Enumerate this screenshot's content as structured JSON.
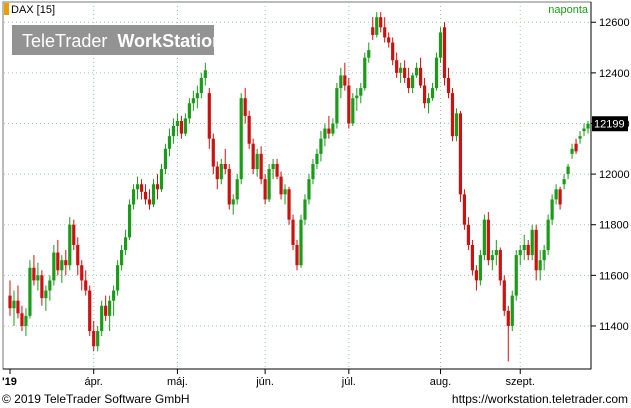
{
  "header": {
    "symbol": "DAX [15]",
    "period": "naponta",
    "watermark_light": "TeleTrader",
    "watermark_bold": "WorkStation"
  },
  "last_price_badge": "12199",
  "footer": {
    "copyright": "© 2019 TeleTrader Software GmbH",
    "url": "https://workstation.teletrader.com"
  },
  "colors": {
    "up": "#1a9c1a",
    "down": "#cc1111",
    "grid": "#9fc9a6",
    "background": "#ffffff"
  },
  "chart_data": {
    "type": "candlestick",
    "title": "DAX [15]",
    "period": "naponta",
    "ylim": [
      11230,
      12680
    ],
    "yticks": [
      11400,
      11600,
      11800,
      12000,
      12200,
      12400,
      12600
    ],
    "x_labels": [
      "'19",
      "ápr.",
      "máj.",
      "jún.",
      "júl.",
      "aug.",
      "szept."
    ],
    "grid": true,
    "candles": [
      [
        11520,
        11580,
        11440,
        11470
      ],
      [
        11470,
        11540,
        11400,
        11500
      ],
      [
        11500,
        11560,
        11430,
        11450
      ],
      [
        11450,
        11480,
        11380,
        11400
      ],
      [
        11400,
        11470,
        11360,
        11440
      ],
      [
        11440,
        11660,
        11430,
        11630
      ],
      [
        11630,
        11680,
        11560,
        11580
      ],
      [
        11580,
        11650,
        11540,
        11600
      ],
      [
        11600,
        11620,
        11480,
        11510
      ],
      [
        11510,
        11560,
        11460,
        11540
      ],
      [
        11540,
        11600,
        11500,
        11580
      ],
      [
        11580,
        11720,
        11560,
        11690
      ],
      [
        11690,
        11740,
        11600,
        11620
      ],
      [
        11620,
        11680,
        11570,
        11660
      ],
      [
        11660,
        11700,
        11600,
        11640
      ],
      [
        11640,
        11830,
        11620,
        11800
      ],
      [
        11800,
        11820,
        11700,
        11720
      ],
      [
        11720,
        11750,
        11600,
        11640
      ],
      [
        11640,
        11660,
        11540,
        11580
      ],
      [
        11580,
        11620,
        11520,
        11540
      ],
      [
        11540,
        11560,
        11360,
        11380
      ],
      [
        11380,
        11420,
        11300,
        11320
      ],
      [
        11320,
        11400,
        11300,
        11380
      ],
      [
        11380,
        11500,
        11360,
        11480
      ],
      [
        11480,
        11520,
        11420,
        11440
      ],
      [
        11440,
        11520,
        11380,
        11500
      ],
      [
        11500,
        11560,
        11440,
        11540
      ],
      [
        11540,
        11660,
        11520,
        11640
      ],
      [
        11640,
        11720,
        11620,
        11700
      ],
      [
        11700,
        11780,
        11680,
        11750
      ],
      [
        11750,
        11900,
        11740,
        11880
      ],
      [
        11880,
        11960,
        11860,
        11940
      ],
      [
        11940,
        11990,
        11900,
        11960
      ],
      [
        11960,
        11980,
        11900,
        11930
      ],
      [
        11930,
        11960,
        11880,
        11900
      ],
      [
        11900,
        11940,
        11860,
        11880
      ],
      [
        11880,
        11980,
        11870,
        11960
      ],
      [
        11960,
        12000,
        11900,
        11940
      ],
      [
        11940,
        12040,
        11930,
        12020
      ],
      [
        12020,
        12120,
        12000,
        12100
      ],
      [
        12100,
        12180,
        12070,
        12150
      ],
      [
        12150,
        12220,
        12120,
        12190
      ],
      [
        12190,
        12240,
        12150,
        12210
      ],
      [
        12210,
        12230,
        12140,
        12160
      ],
      [
        12160,
        12240,
        12150,
        12220
      ],
      [
        12220,
        12300,
        12200,
        12280
      ],
      [
        12280,
        12330,
        12250,
        12300
      ],
      [
        12300,
        12350,
        12260,
        12320
      ],
      [
        12320,
        12400,
        12300,
        12380
      ],
      [
        12380,
        12440,
        12350,
        12410
      ],
      [
        12320,
        12340,
        12100,
        12140
      ],
      [
        12140,
        12160,
        12000,
        12030
      ],
      [
        12030,
        12050,
        11940,
        11980
      ],
      [
        11980,
        12060,
        11960,
        12040
      ],
      [
        12040,
        12100,
        12000,
        12020
      ],
      [
        12020,
        12040,
        11860,
        11880
      ],
      [
        11880,
        11920,
        11840,
        11900
      ],
      [
        11900,
        12000,
        11880,
        11980
      ],
      [
        11980,
        12320,
        11960,
        12300
      ],
      [
        12300,
        12340,
        12200,
        12230
      ],
      [
        12230,
        12250,
        12100,
        12120
      ],
      [
        12120,
        12140,
        12000,
        12020
      ],
      [
        12020,
        12100,
        11990,
        12080
      ],
      [
        12080,
        12110,
        11960,
        11980
      ],
      [
        11980,
        12000,
        11880,
        11900
      ],
      [
        11900,
        12040,
        11890,
        12020
      ],
      [
        12020,
        12060,
        11980,
        12040
      ],
      [
        12040,
        12060,
        11980,
        11990
      ],
      [
        11990,
        12010,
        11900,
        11920
      ],
      [
        11920,
        11960,
        11880,
        11940
      ],
      [
        11940,
        11950,
        11800,
        11820
      ],
      [
        11820,
        11840,
        11700,
        11720
      ],
      [
        11720,
        11740,
        11620,
        11640
      ],
      [
        11640,
        11840,
        11630,
        11820
      ],
      [
        11820,
        11920,
        11800,
        11900
      ],
      [
        11900,
        12000,
        11880,
        11980
      ],
      [
        11980,
        12060,
        11960,
        12040
      ],
      [
        12040,
        12100,
        12020,
        12080
      ],
      [
        12080,
        12170,
        12050,
        12140
      ],
      [
        12140,
        12200,
        12110,
        12180
      ],
      [
        12180,
        12230,
        12140,
        12160
      ],
      [
        12160,
        12220,
        12150,
        12200
      ],
      [
        12200,
        12360,
        12180,
        12340
      ],
      [
        12340,
        12420,
        12300,
        12390
      ],
      [
        12390,
        12440,
        12330,
        12350
      ],
      [
        12350,
        12380,
        12180,
        12200
      ],
      [
        12200,
        12320,
        12190,
        12300
      ],
      [
        12300,
        12340,
        12250,
        12310
      ],
      [
        12310,
        12360,
        12280,
        12340
      ],
      [
        12340,
        12480,
        12330,
        12460
      ],
      [
        12460,
        12520,
        12440,
        12490
      ],
      [
        12580,
        12620,
        12530,
        12550
      ],
      [
        12550,
        12640,
        12540,
        12620
      ],
      [
        12620,
        12640,
        12560,
        12580
      ],
      [
        12580,
        12620,
        12520,
        12540
      ],
      [
        12540,
        12560,
        12500,
        12520
      ],
      [
        12520,
        12540,
        12430,
        12450
      ],
      [
        12450,
        12480,
        12380,
        12400
      ],
      [
        12400,
        12440,
        12360,
        12420
      ],
      [
        12420,
        12450,
        12360,
        12380
      ],
      [
        12380,
        12420,
        12320,
        12340
      ],
      [
        12340,
        12400,
        12320,
        12390
      ],
      [
        12390,
        12440,
        12380,
        12420
      ],
      [
        12420,
        12460,
        12340,
        12350
      ],
      [
        12350,
        12380,
        12260,
        12280
      ],
      [
        12280,
        12320,
        12240,
        12300
      ],
      [
        12300,
        12360,
        12290,
        12340
      ],
      [
        12340,
        12480,
        12330,
        12460
      ],
      [
        12460,
        12580,
        12440,
        12560
      ],
      [
        12580,
        12600,
        12350,
        12380
      ],
      [
        12380,
        12420,
        12300,
        12320
      ],
      [
        12320,
        12340,
        12130,
        12150
      ],
      [
        12150,
        12260,
        12130,
        12240
      ],
      [
        12240,
        12250,
        11890,
        11920
      ],
      [
        11920,
        11940,
        11780,
        11800
      ],
      [
        11800,
        11830,
        11700,
        11720
      ],
      [
        11720,
        11740,
        11600,
        11620
      ],
      [
        11620,
        11640,
        11540,
        11580
      ],
      [
        11580,
        11700,
        11560,
        11680
      ],
      [
        11680,
        11840,
        11660,
        11820
      ],
      [
        11820,
        11850,
        11640,
        11660
      ],
      [
        11660,
        11700,
        11620,
        11680
      ],
      [
        11680,
        11740,
        11640,
        11700
      ],
      [
        11700,
        11710,
        11560,
        11580
      ],
      [
        11580,
        11600,
        11440,
        11460
      ],
      [
        11460,
        11480,
        11260,
        11400
      ],
      [
        11400,
        11540,
        11380,
        11520
      ],
      [
        11520,
        11700,
        11500,
        11680
      ],
      [
        11680,
        11720,
        11640,
        11700
      ],
      [
        11700,
        11760,
        11660,
        11720
      ],
      [
        11720,
        11740,
        11660,
        11680
      ],
      [
        11680,
        11800,
        11660,
        11780
      ],
      [
        11780,
        11800,
        11580,
        11620
      ],
      [
        11620,
        11700,
        11580,
        11660
      ],
      [
        11660,
        11720,
        11620,
        11700
      ],
      [
        11700,
        11840,
        11680,
        11820
      ],
      [
        11820,
        11920,
        11800,
        11900
      ],
      [
        11900,
        11960,
        11880,
        11940
      ],
      [
        11940,
        11950,
        11860,
        11880
      ],
      [
        11960,
        12000,
        11940,
        11980
      ],
      [
        12000,
        12040,
        11980,
        12030
      ],
      [
        12080,
        12120,
        12060,
        12100
      ],
      [
        12120,
        12140,
        12080,
        12090
      ],
      [
        12140,
        12170,
        12120,
        12150
      ],
      [
        12170,
        12200,
        12150,
        12180
      ],
      [
        12180,
        12210,
        12160,
        12199
      ]
    ]
  }
}
